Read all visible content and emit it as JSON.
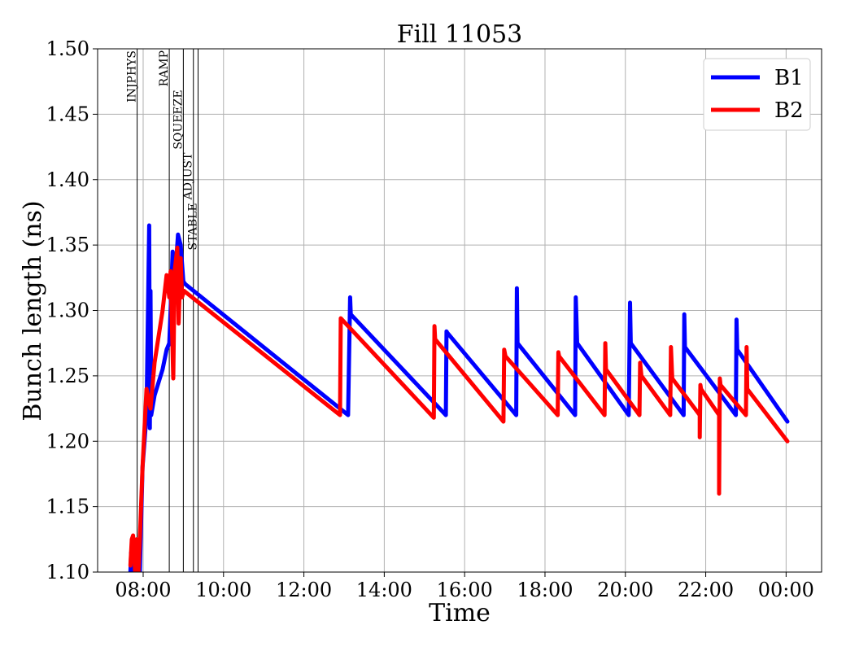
{
  "chart_data": {
    "type": "line",
    "title": "Fill 11053",
    "xlabel": "Time",
    "ylabel": "Bunch length (ns)",
    "xlim": [
      "06:52",
      "00:53"
    ],
    "ylim": [
      1.1,
      1.5
    ],
    "grid": true,
    "legend_position": "top-right",
    "x_ticks": [
      "08:00",
      "10:00",
      "12:00",
      "14:00",
      "16:00",
      "18:00",
      "20:00",
      "22:00",
      "00:00"
    ],
    "y_ticks": [
      "1.10",
      "1.15",
      "1.20",
      "1.25",
      "1.30",
      "1.35",
      "1.40",
      "1.45",
      "1.50"
    ],
    "phase_markers": [
      {
        "label": "INJPHYS",
        "time": "07:51"
      },
      {
        "label": "RAMP",
        "time": "08:39"
      },
      {
        "label": "SQUEEZE",
        "time": "09:00"
      },
      {
        "label": "ADJUST",
        "time": "09:15"
      },
      {
        "label": "STABLE",
        "time": "09:22"
      }
    ],
    "series": [
      {
        "name": "B1",
        "color": "#0000ff",
        "points": [
          [
            "07:41",
            1.1
          ],
          [
            "07:42",
            1.115
          ],
          [
            "07:43",
            1.1
          ],
          [
            "07:55",
            1.1
          ],
          [
            "07:59",
            1.18
          ],
          [
            "08:05",
            1.22
          ],
          [
            "08:09",
            1.365
          ],
          [
            "08:10",
            1.21
          ],
          [
            "08:11",
            1.315
          ],
          [
            "08:12",
            1.22
          ],
          [
            "08:17",
            1.235
          ],
          [
            "08:29",
            1.255
          ],
          [
            "08:35",
            1.27
          ],
          [
            "08:39",
            1.275
          ],
          [
            "08:41",
            1.3
          ],
          [
            "08:44",
            1.345
          ],
          [
            "08:47",
            1.32
          ],
          [
            "08:52",
            1.358
          ],
          [
            "08:56",
            1.35
          ],
          [
            "09:00",
            1.322
          ],
          [
            "09:03",
            1.32
          ],
          [
            "12:54",
            1.225
          ],
          [
            "13:06",
            1.22
          ],
          [
            "13:09",
            1.31
          ],
          [
            "13:10",
            1.297
          ],
          [
            "15:32",
            1.22
          ],
          [
            "15:33",
            1.284
          ],
          [
            "15:34",
            1.283
          ],
          [
            "17:17",
            1.22
          ],
          [
            "17:18",
            1.317
          ],
          [
            "17:19",
            1.275
          ],
          [
            "18:45",
            1.22
          ],
          [
            "18:46",
            1.31
          ],
          [
            "18:48",
            1.275
          ],
          [
            "20:05",
            1.22
          ],
          [
            "20:07",
            1.306
          ],
          [
            "20:08",
            1.275
          ],
          [
            "21:27",
            1.22
          ],
          [
            "21:28",
            1.297
          ],
          [
            "21:29",
            1.272
          ],
          [
            "22:45",
            1.22
          ],
          [
            "22:46",
            1.293
          ],
          [
            "22:47",
            1.27
          ],
          [
            "00:02",
            1.215
          ]
        ]
      },
      {
        "name": "B2",
        "color": "#ff0000",
        "points": [
          [
            "07:41",
            1.105
          ],
          [
            "07:43",
            1.125
          ],
          [
            "07:45",
            1.128
          ],
          [
            "07:48",
            1.1
          ],
          [
            "07:50",
            1.125
          ],
          [
            "07:53",
            1.1
          ],
          [
            "07:55",
            1.125
          ],
          [
            "07:59",
            1.18
          ],
          [
            "08:05",
            1.24
          ],
          [
            "08:11",
            1.225
          ],
          [
            "08:17",
            1.26
          ],
          [
            "08:23",
            1.28
          ],
          [
            "08:29",
            1.3
          ],
          [
            "08:35",
            1.327
          ],
          [
            "08:39",
            1.31
          ],
          [
            "08:41",
            1.33
          ],
          [
            "08:45",
            1.248
          ],
          [
            "08:47",
            1.33
          ],
          [
            "08:51",
            1.348
          ],
          [
            "08:53",
            1.29
          ],
          [
            "08:56",
            1.34
          ],
          [
            "08:58",
            1.31
          ],
          [
            "09:01",
            1.315
          ],
          [
            "12:54",
            1.22
          ],
          [
            "12:55",
            1.294
          ],
          [
            "15:14",
            1.218
          ],
          [
            "15:15",
            1.288
          ],
          [
            "15:16",
            1.278
          ],
          [
            "16:58",
            1.215
          ],
          [
            "16:59",
            1.27
          ],
          [
            "17:01",
            1.265
          ],
          [
            "18:19",
            1.22
          ],
          [
            "18:20",
            1.268
          ],
          [
            "18:21",
            1.265
          ],
          [
            "19:29",
            1.22
          ],
          [
            "19:30",
            1.275
          ],
          [
            "19:31",
            1.255
          ],
          [
            "20:21",
            1.22
          ],
          [
            "20:22",
            1.26
          ],
          [
            "20:24",
            1.25
          ],
          [
            "21:07",
            1.22
          ],
          [
            "21:08",
            1.272
          ],
          [
            "21:10",
            1.248
          ],
          [
            "21:51",
            1.22
          ],
          [
            "21:51",
            1.203
          ],
          [
            "21:52",
            1.243
          ],
          [
            "21:53",
            1.24
          ],
          [
            "22:20",
            1.22
          ],
          [
            "22:20",
            1.16
          ],
          [
            "22:21",
            1.248
          ],
          [
            "22:22",
            1.243
          ],
          [
            "23:00",
            1.22
          ],
          [
            "23:01",
            1.272
          ],
          [
            "23:02",
            1.24
          ],
          [
            "00:02",
            1.2
          ]
        ]
      }
    ]
  }
}
